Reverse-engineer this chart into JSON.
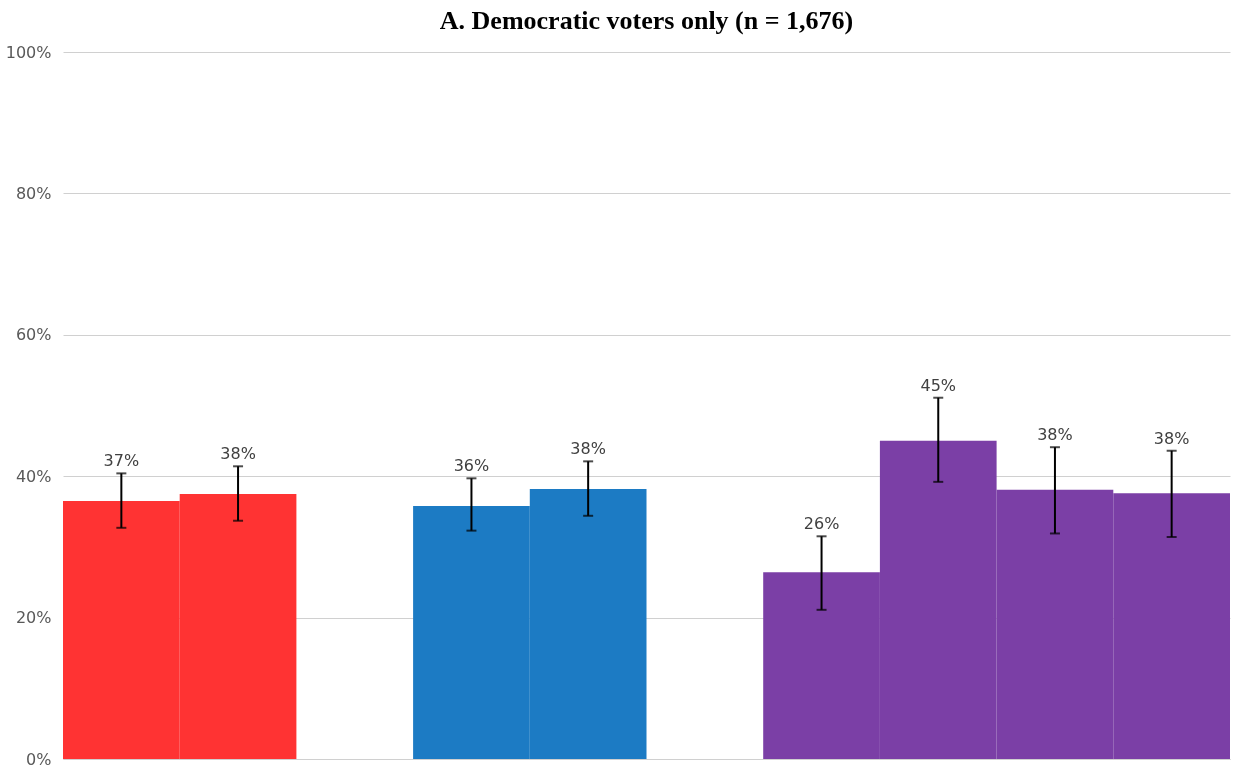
{
  "chart_data": {
    "type": "bar",
    "title": "A. Democratic voters only (n = 1,676)",
    "categories": [
      null,
      null,
      null,
      null,
      null,
      null,
      null,
      null,
      null,
      null
    ],
    "values": [
      36.5,
      37.5,
      null,
      35.8,
      38.2,
      null,
      26.4,
      45.0,
      38.1,
      37.6
    ],
    "colors": [
      "#ff3333",
      "#ff3333",
      null,
      "#1c7bc4",
      "#1c7bc4",
      null,
      "#7b3fa6",
      "#7b3fa6",
      "#7b3fa6",
      "#7b3fa6"
    ],
    "errors": [
      [
        32.7,
        40.4
      ],
      [
        33.7,
        41.4
      ],
      null,
      [
        32.3,
        39.7
      ],
      [
        34.4,
        42.1
      ],
      null,
      [
        21.1,
        31.5
      ],
      [
        39.2,
        51.1
      ],
      [
        31.9,
        44.1
      ],
      [
        31.4,
        43.6
      ]
    ],
    "value_labels": [
      "37%",
      "38%",
      null,
      "36%",
      "38%",
      null,
      "26%",
      "45%",
      "38%",
      "38%"
    ],
    "ylim": [
      0,
      100
    ],
    "yticks": [
      {
        "value": 0,
        "label": "0%"
      },
      {
        "value": 20,
        "label": "20%"
      },
      {
        "value": 40,
        "label": "40%"
      },
      {
        "value": 60,
        "label": "60%"
      },
      {
        "value": 80,
        "label": "80%"
      },
      {
        "value": 100,
        "label": "100%"
      }
    ],
    "grid": "y",
    "tick_labels": "y"
  }
}
